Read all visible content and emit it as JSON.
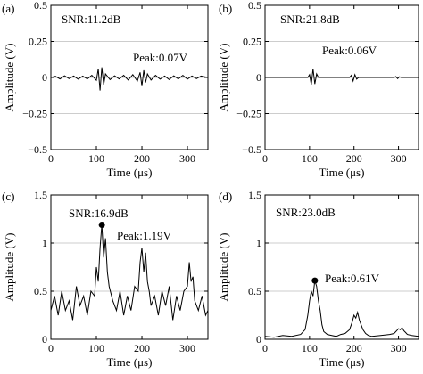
{
  "chart_data": [
    {
      "panel_label": "(a)",
      "type": "line",
      "xlabel": "Time (μs)",
      "ylabel": "Amplitude (V)",
      "xlim": [
        0,
        345
      ],
      "ylim": [
        -0.5,
        0.5
      ],
      "xticks": [
        0,
        100,
        200,
        300
      ],
      "xtick_labels": [
        "0",
        "100",
        "200",
        "300"
      ],
      "yticks": [
        -0.5,
        -0.25,
        0,
        0.25,
        0.5
      ],
      "ytick_labels": [
        "−0.5",
        "−0.25",
        "0",
        "0.25",
        "0.5"
      ],
      "grid": "horizontal",
      "annotations": [
        {
          "text": "SNR:11.2dB",
          "x": 40,
          "y": 0.4
        },
        {
          "text": "Peak:0.07V",
          "x": 115,
          "y": 0.07
        }
      ],
      "series": [
        {
          "x": [
            0,
            10,
            20,
            30,
            40,
            50,
            60,
            70,
            80,
            90,
            100,
            104,
            108,
            112,
            116,
            120,
            130,
            140,
            150,
            160,
            170,
            180,
            190,
            196,
            200,
            204,
            208,
            212,
            220,
            230,
            240,
            250,
            260,
            270,
            280,
            290,
            300,
            310,
            320,
            330,
            345
          ],
          "y": [
            0,
            0.008,
            -0.01,
            0.012,
            -0.008,
            0.01,
            -0.012,
            0.009,
            -0.01,
            0.015,
            -0.02,
            0.06,
            -0.09,
            0.07,
            -0.05,
            0.025,
            -0.015,
            0.012,
            -0.01,
            0.015,
            -0.018,
            0.02,
            -0.025,
            0.035,
            -0.06,
            0.05,
            -0.035,
            0.025,
            -0.018,
            0.015,
            -0.012,
            0.01,
            -0.015,
            0.012,
            -0.01,
            0.015,
            -0.012,
            0.01,
            -0.008,
            0.01,
            0
          ]
        }
      ]
    },
    {
      "panel_label": "(b)",
      "type": "line",
      "xlabel": "Time (μs)",
      "ylabel": "Amplitude (V)",
      "xlim": [
        0,
        345
      ],
      "ylim": [
        -0.5,
        0.5
      ],
      "xticks": [
        0,
        100,
        200,
        300
      ],
      "xtick_labels": [
        "0",
        "100",
        "200",
        "300"
      ],
      "yticks": [
        -0.5,
        -0.25,
        0,
        0.25,
        0.5
      ],
      "ytick_labels": [
        "−0.5",
        "−0.25",
        "0",
        "0.25",
        "0.5"
      ],
      "grid": "horizontal",
      "annotations": [
        {
          "text": "SNR:21.8dB",
          "x": 40,
          "y": 0.4
        },
        {
          "text": "Peak:0.06V",
          "x": 115,
          "y": 0.15
        }
      ],
      "series": [
        {
          "x": [
            0,
            50,
            96,
            100,
            104,
            108,
            112,
            116,
            120,
            130,
            190,
            194,
            198,
            202,
            206,
            210,
            220,
            290,
            294,
            298,
            302,
            306,
            345
          ],
          "y": [
            0,
            0,
            0,
            0.02,
            -0.05,
            0.06,
            -0.045,
            0.025,
            0,
            0,
            0,
            0.015,
            -0.025,
            0.02,
            -0.012,
            0,
            0,
            0,
            0.006,
            -0.008,
            0.005,
            0,
            0
          ]
        }
      ]
    },
    {
      "panel_label": "(c)",
      "type": "line",
      "xlabel": "Time (μs)",
      "ylabel": "Amplitude (V)",
      "xlim": [
        0,
        345
      ],
      "ylim": [
        0,
        1.5
      ],
      "xticks": [
        0,
        100,
        200,
        300
      ],
      "xtick_labels": [
        "0",
        "100",
        "200",
        "300"
      ],
      "yticks": [
        0,
        0.5,
        1,
        1.5
      ],
      "ytick_labels": [
        "0",
        "0.5",
        "1",
        "1.5"
      ],
      "grid": "horizontal",
      "annotations": [
        {
          "text": "SNR:16.9dB",
          "x": 40,
          "y": 1.28
        },
        {
          "text": "Peak:1.19V",
          "x": 115,
          "y": 1.19
        }
      ],
      "peak_marker": {
        "x": 112,
        "y": 1.19
      },
      "series": [
        {
          "x": [
            0,
            8,
            16,
            24,
            32,
            40,
            48,
            56,
            64,
            72,
            80,
            88,
            96,
            100,
            104,
            108,
            112,
            116,
            120,
            124,
            128,
            136,
            144,
            152,
            160,
            168,
            176,
            184,
            192,
            196,
            200,
            204,
            208,
            212,
            216,
            220,
            228,
            236,
            244,
            252,
            260,
            268,
            276,
            284,
            292,
            300,
            304,
            308,
            312,
            316,
            324,
            332,
            340,
            345
          ],
          "y": [
            0.3,
            0.45,
            0.25,
            0.5,
            0.3,
            0.4,
            0.2,
            0.55,
            0.35,
            0.45,
            0.25,
            0.5,
            0.45,
            0.75,
            0.6,
            0.95,
            1.19,
            0.85,
            1.05,
            0.7,
            0.55,
            0.4,
            0.3,
            0.5,
            0.25,
            0.45,
            0.3,
            0.55,
            0.5,
            0.8,
            0.95,
            0.7,
            0.9,
            0.6,
            0.5,
            0.35,
            0.45,
            0.25,
            0.5,
            0.35,
            0.55,
            0.2,
            0.45,
            0.3,
            0.5,
            0.55,
            0.8,
            0.6,
            0.65,
            0.4,
            0.3,
            0.45,
            0.25,
            0.3
          ]
        }
      ]
    },
    {
      "panel_label": "(d)",
      "type": "line",
      "xlabel": "Time (μs)",
      "ylabel": "Amplitude (V)",
      "xlim": [
        0,
        345
      ],
      "ylim": [
        0,
        1.5
      ],
      "xticks": [
        0,
        100,
        200,
        300
      ],
      "xtick_labels": [
        "0",
        "100",
        "200",
        "300"
      ],
      "yticks": [
        0,
        0.5,
        1,
        1.5
      ],
      "ytick_labels": [
        "0",
        "0.5",
        "1",
        "1.5"
      ],
      "grid": "horizontal",
      "annotations": [
        {
          "text": "SNR:23.0dB",
          "x": 40,
          "y": 1.28
        },
        {
          "text": "Peak:0.61V",
          "x": 125,
          "y": 0.61
        }
      ],
      "peak_marker": {
        "x": 112,
        "y": 0.61
      },
      "series": [
        {
          "x": [
            0,
            20,
            40,
            60,
            80,
            90,
            96,
            100,
            104,
            108,
            112,
            116,
            120,
            124,
            128,
            132,
            140,
            150,
            160,
            170,
            180,
            190,
            196,
            200,
            204,
            208,
            212,
            216,
            220,
            226,
            232,
            240,
            260,
            280,
            290,
            296,
            300,
            304,
            308,
            312,
            316,
            320,
            330,
            345
          ],
          "y": [
            0.03,
            0.02,
            0.04,
            0.03,
            0.05,
            0.1,
            0.25,
            0.4,
            0.5,
            0.45,
            0.61,
            0.55,
            0.4,
            0.3,
            0.15,
            0.08,
            0.05,
            0.04,
            0.03,
            0.05,
            0.06,
            0.1,
            0.18,
            0.25,
            0.22,
            0.28,
            0.2,
            0.15,
            0.1,
            0.06,
            0.04,
            0.03,
            0.04,
            0.05,
            0.06,
            0.09,
            0.11,
            0.1,
            0.12,
            0.09,
            0.07,
            0.05,
            0.04,
            0.03
          ]
        }
      ]
    }
  ]
}
